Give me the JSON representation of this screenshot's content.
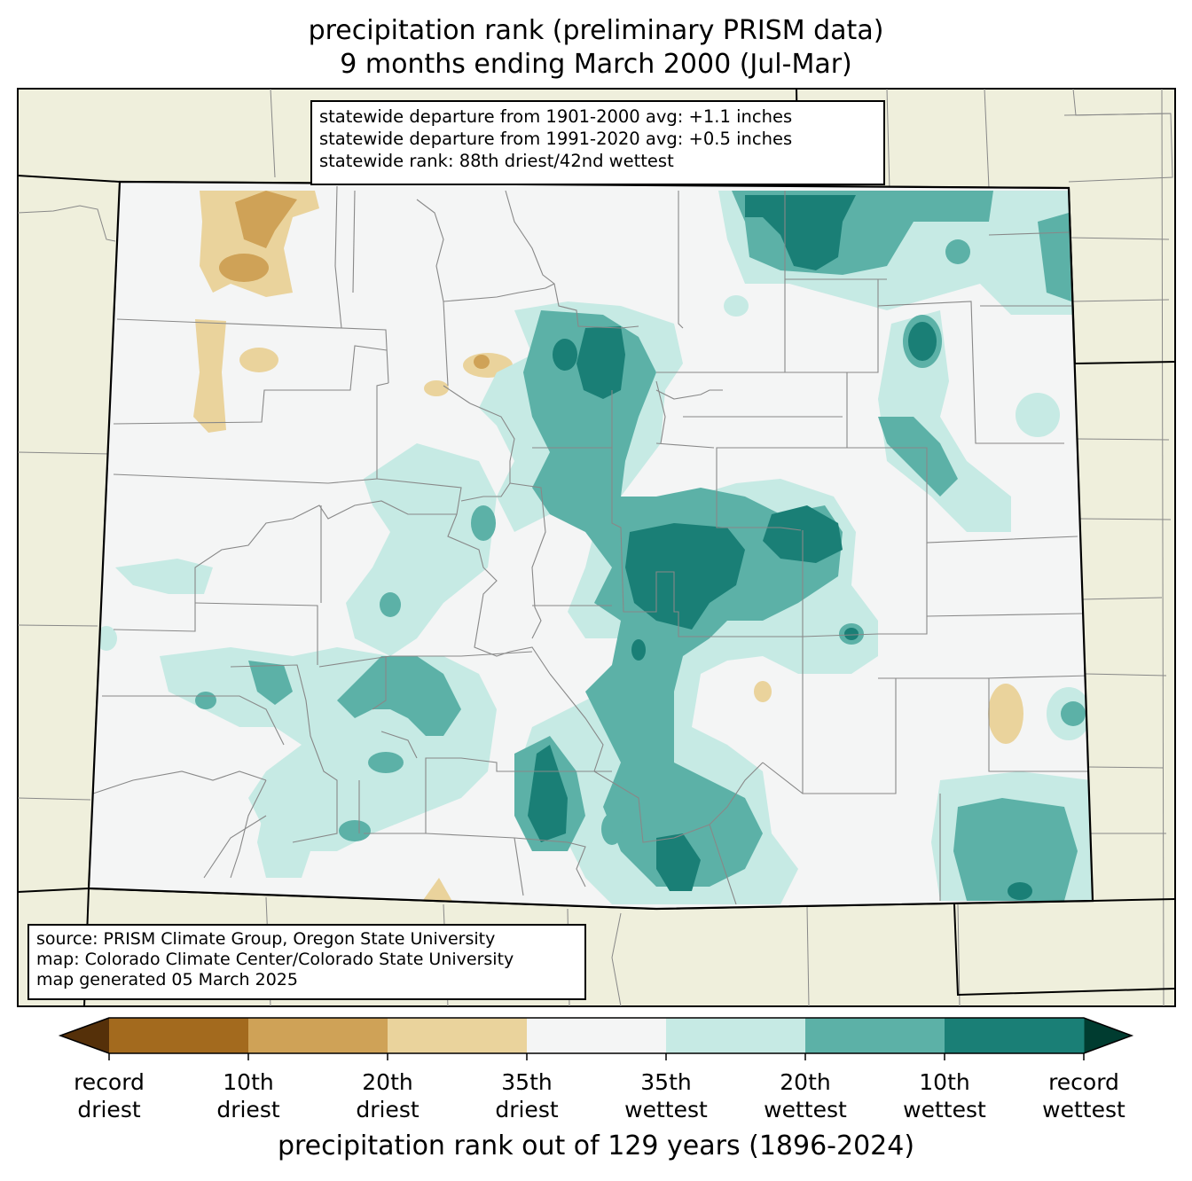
{
  "title": {
    "line1": "precipitation rank (preliminary PRISM data)",
    "line2": "9 months ending March 2000 (Jul-Mar)"
  },
  "stats": {
    "line1": "statewide departure from 1901-2000 avg: +1.1 inches",
    "line2": "statewide departure from 1991-2020 avg: +0.5 inches",
    "line3": "statewide rank: 88th driest/42nd wettest"
  },
  "credits": {
    "line1": "source: PRISM Climate Group, Oregon State University",
    "line2": "map: Colorado Climate Center/Colorado State University",
    "line3": "map generated 05 March 2025"
  },
  "colorbar": {
    "title": "precipitation rank out of 129 years (1896-2024)",
    "ticks": [
      {
        "line1": "record",
        "line2": "driest"
      },
      {
        "line1": "10th",
        "line2": "driest"
      },
      {
        "line1": "20th",
        "line2": "driest"
      },
      {
        "line1": "35th",
        "line2": "driest"
      },
      {
        "line1": "35th",
        "line2": "wettest"
      },
      {
        "line1": "20th",
        "line2": "wettest"
      },
      {
        "line1": "10th",
        "line2": "wettest"
      },
      {
        "line1": "record",
        "line2": "wettest"
      }
    ],
    "colors": [
      "#a36a1e",
      "#cfa257",
      "#ead39c",
      "#f4f5f5",
      "#c6eae4",
      "#5cb1a7",
      "#1a7f76"
    ],
    "extend_low_color": "#553009",
    "extend_high_color": "#003c30"
  },
  "map_colors": {
    "land": "#efefdc",
    "state_fill": "#f4f5f5"
  }
}
